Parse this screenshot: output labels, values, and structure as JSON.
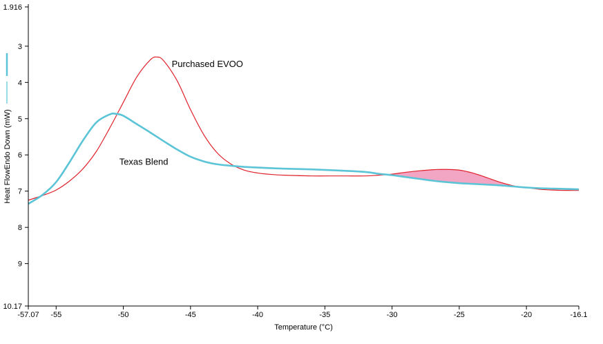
{
  "chart_data": {
    "type": "line",
    "title": "",
    "xlabel": "Temperature (°C)",
    "ylabel": "Heat FlowEndo Down (mW)",
    "xlim": [
      -57.07,
      -16.1
    ],
    "ylim": [
      1.916,
      10.17
    ],
    "y_inverted": true,
    "grid": false,
    "x_ticks": [
      -57.07,
      -55,
      -50,
      -45,
      -40,
      -35,
      -30,
      -25,
      -20,
      -16.1
    ],
    "x_tick_labels": [
      "-57.07",
      "-55",
      "-50",
      "-45",
      "-40",
      "-35",
      "-30",
      "-25",
      "-20",
      "-16.1"
    ],
    "y_ticks": [
      1.916,
      3,
      4,
      5,
      6,
      7,
      8,
      9,
      10.17
    ],
    "y_tick_labels": [
      "1.916",
      "3",
      "4",
      "5",
      "6",
      "7",
      "8",
      "9",
      "10.17"
    ],
    "series": [
      {
        "name": "Purchased EVOO",
        "color": "#e0202a",
        "x": [
          -57.07,
          -56,
          -55,
          -54,
          -53,
          -52,
          -51,
          -50,
          -49,
          -48,
          -47.5,
          -47,
          -46,
          -45,
          -44,
          -43,
          -42,
          -41,
          -40,
          -39,
          -38,
          -36,
          -34,
          -32,
          -31,
          -30,
          -29,
          -28,
          -27,
          -26,
          -25,
          -24,
          -23,
          -22,
          -21,
          -20,
          -19,
          -18,
          -17,
          -16.1
        ],
        "y": [
          7.25,
          7.12,
          6.97,
          6.72,
          6.38,
          5.9,
          5.25,
          4.55,
          3.85,
          3.38,
          3.3,
          3.4,
          3.95,
          4.75,
          5.45,
          5.95,
          6.25,
          6.42,
          6.5,
          6.54,
          6.56,
          6.58,
          6.58,
          6.58,
          6.56,
          6.53,
          6.48,
          6.44,
          6.41,
          6.4,
          6.42,
          6.5,
          6.62,
          6.75,
          6.85,
          6.9,
          6.95,
          6.97,
          6.98,
          6.98
        ]
      },
      {
        "name": "Texas Blend",
        "color": "#5bc4d6",
        "x": [
          -57.07,
          -56,
          -55,
          -54,
          -53,
          -52,
          -51,
          -50.5,
          -50,
          -49,
          -48,
          -47,
          -46,
          -45,
          -44,
          -43,
          -42,
          -41,
          -40,
          -38,
          -36,
          -34,
          -32,
          -31,
          -30,
          -29,
          -28,
          -27,
          -26,
          -25,
          -24,
          -23,
          -22,
          -21,
          -20,
          -19,
          -18,
          -17,
          -16.1
        ],
        "y": [
          7.35,
          7.1,
          6.75,
          6.2,
          5.6,
          5.1,
          4.88,
          4.87,
          4.92,
          5.15,
          5.38,
          5.62,
          5.85,
          6.05,
          6.18,
          6.26,
          6.3,
          6.33,
          6.35,
          6.38,
          6.4,
          6.43,
          6.47,
          6.52,
          6.56,
          6.61,
          6.66,
          6.71,
          6.75,
          6.78,
          6.8,
          6.82,
          6.84,
          6.87,
          6.9,
          6.92,
          6.93,
          6.94,
          6.95
        ]
      }
    ],
    "annotations": [
      {
        "text": "Purchased EVOO",
        "x": -46.4,
        "y": 3.5
      },
      {
        "text": "Texas Blend",
        "x": -50.3,
        "y": 6.2
      }
    ],
    "shaded_region": {
      "x_start": -30,
      "x_end": -20.5,
      "color": "#f2a6c3",
      "between": [
        "Purchased EVOO",
        "Texas Blend"
      ]
    }
  }
}
